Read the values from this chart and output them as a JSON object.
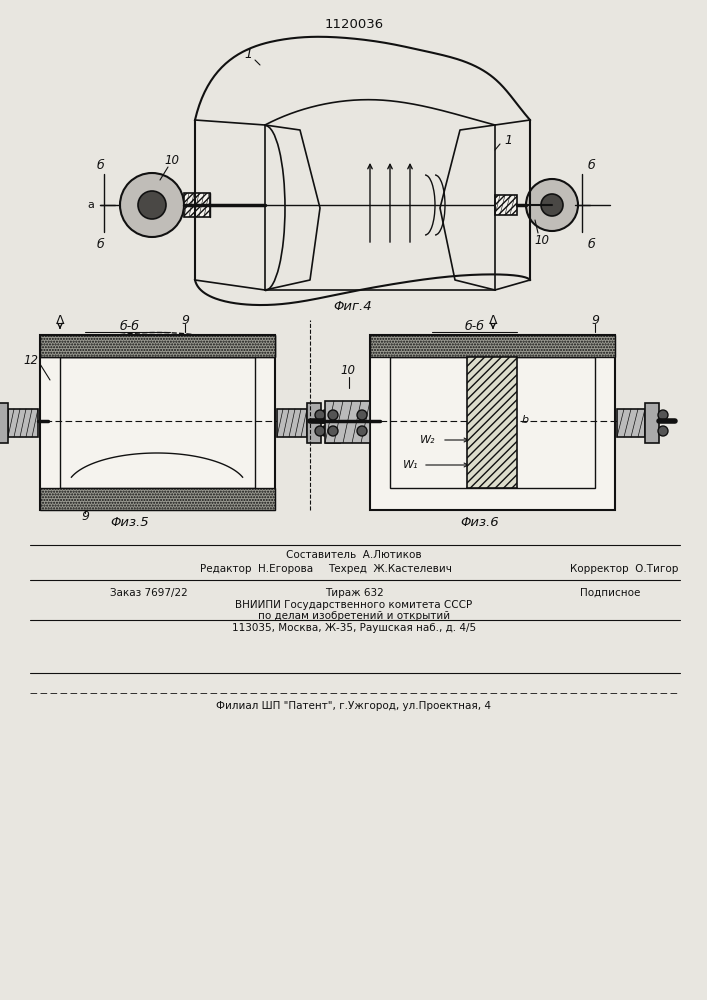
{
  "patent_number": "1120036",
  "fig4_label": "Φиг.4",
  "fig5_label": "Φиз.5",
  "fig6_label": "Φиз.6",
  "bg_color": "#e8e6e0",
  "line_color": "#111111",
  "white": "#f5f3ee"
}
